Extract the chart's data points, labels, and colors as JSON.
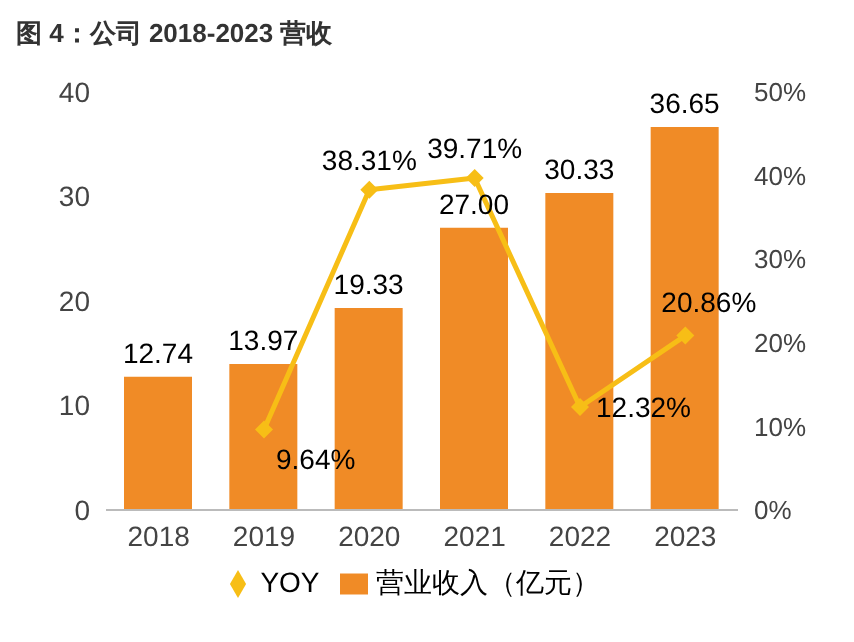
{
  "chart_data": {
    "type": "bar",
    "title": "图 4：公司 2018-2023 营收",
    "categories": [
      "2018",
      "2019",
      "2020",
      "2021",
      "2022",
      "2023"
    ],
    "series": [
      {
        "name": "营业收入（亿元）",
        "color": "#f08b26",
        "values": [
          12.74,
          13.97,
          19.33,
          27.0,
          30.33,
          36.65
        ],
        "value_labels": [
          "12.74",
          "13.97",
          "19.33",
          "27.00",
          "30.33",
          "36.65"
        ]
      },
      {
        "name": "YOY",
        "type": "line",
        "axis": "y2",
        "color": "#f7be16",
        "values": [
          null,
          9.64,
          38.31,
          39.71,
          12.32,
          20.86
        ],
        "value_labels": [
          null,
          "9.64%",
          "38.31%",
          "39.71%",
          "12.32%",
          "20.86%"
        ]
      }
    ],
    "ylim": [
      0,
      40
    ],
    "yticks": [
      0,
      10,
      20,
      30,
      40
    ],
    "y2lim": [
      0,
      50
    ],
    "y2ticks": [
      {
        "value": 0,
        "label": "0%"
      },
      {
        "value": 10,
        "label": "10%"
      },
      {
        "value": 20,
        "label": "20%"
      },
      {
        "value": 30,
        "label": "30%"
      },
      {
        "value": 40,
        "label": "40%"
      },
      {
        "value": 50,
        "label": "50%"
      }
    ],
    "grid": false,
    "legend": "bottom",
    "marker": "diamond",
    "line_style": "solid"
  }
}
